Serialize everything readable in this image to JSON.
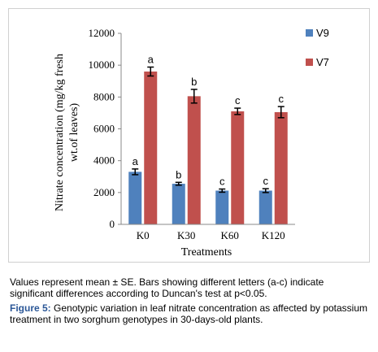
{
  "chart_data": {
    "type": "bar",
    "categories": [
      "K0",
      "K30",
      "K60",
      "K120"
    ],
    "series": [
      {
        "name": "V9",
        "color": "#4f81bd",
        "values": [
          3300,
          2550,
          2120,
          2120
        ],
        "errors": [
          180,
          90,
          100,
          120
        ],
        "letters": [
          "a",
          "b",
          "c",
          "c"
        ]
      },
      {
        "name": "V7",
        "color": "#c0504d",
        "values": [
          9600,
          8050,
          7100,
          7050
        ],
        "errors": [
          280,
          430,
          200,
          350
        ],
        "letters": [
          "a",
          "b",
          "c",
          "c"
        ]
      }
    ],
    "xlabel": "Treatments",
    "ylabel": "Nitrate concentration (mg/kg fresh wt.of leaves)",
    "ylabel_lines": [
      "Nitrate concentration (mg/kg fresh",
      "wt.of leaves)"
    ],
    "ylim": [
      0,
      12000
    ],
    "yticks": [
      0,
      2000,
      4000,
      6000,
      8000,
      10000,
      12000
    ],
    "yticklabels": [
      "0",
      "2000",
      "4000",
      "6000",
      "8000",
      "10000",
      "12000"
    ],
    "legend_position": "right",
    "grid": false
  },
  "caption": {
    "note": "Values represent mean ± SE. Bars showing different  letters (a-c) indicate significant differences according to Duncan's test at p<0.05.",
    "figure_label": "Figure 5:",
    "figure_text": "Genotypic variation in leaf nitrate concentration as affected by potassium treatment in two sorghum genotypes in 30-days-old plants."
  }
}
